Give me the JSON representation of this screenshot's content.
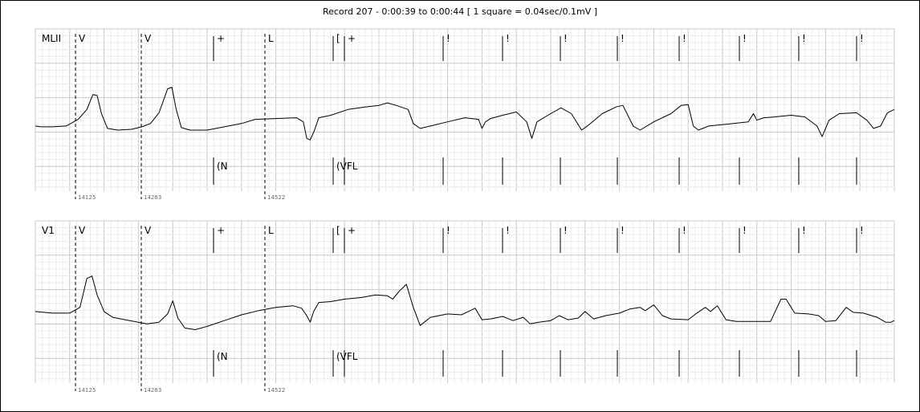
{
  "title": "Record 207 - 0:00:39 to 0:00:44  [ 1 square = 0.04sec/0.1mV ]",
  "chart_data": {
    "type": "line",
    "title": "Record 207 - 0:00:39 to 0:00:44  [ 1 square = 0.04sec/0.1mV ]",
    "record": "207",
    "time_window": [
      "0:00:39",
      "0:00:44"
    ],
    "scale": "1 square = 0.04sec/0.1mV",
    "grid": true,
    "leads": [
      {
        "name": "MLII",
        "points": [
          [
            0,
            0.05
          ],
          [
            0.03,
            0.04
          ],
          [
            0.1,
            0.04
          ],
          [
            0.18,
            0.05
          ],
          [
            0.25,
            0.13
          ],
          [
            0.3,
            0.25
          ],
          [
            0.335,
            0.43
          ],
          [
            0.36,
            0.42
          ],
          [
            0.385,
            0.2
          ],
          [
            0.42,
            0.02
          ],
          [
            0.48,
            0.0
          ],
          [
            0.56,
            0.01
          ],
          [
            0.62,
            0.04
          ],
          [
            0.67,
            0.08
          ],
          [
            0.72,
            0.21
          ],
          [
            0.77,
            0.5
          ],
          [
            0.795,
            0.52
          ],
          [
            0.82,
            0.25
          ],
          [
            0.85,
            0.03
          ],
          [
            0.9,
            0.0
          ],
          [
            1.0,
            0.0
          ],
          [
            1.1,
            0.04
          ],
          [
            1.2,
            0.08
          ],
          [
            1.28,
            0.13
          ],
          [
            1.4,
            0.14
          ],
          [
            1.52,
            0.15
          ],
          [
            1.56,
            0.1
          ],
          [
            1.58,
            -0.1
          ],
          [
            1.6,
            -0.12
          ],
          [
            1.625,
            0.0
          ],
          [
            1.65,
            0.15
          ],
          [
            1.72,
            0.18
          ],
          [
            1.82,
            0.25
          ],
          [
            1.92,
            0.28
          ],
          [
            2.0,
            0.3
          ],
          [
            2.05,
            0.33
          ],
          [
            2.1,
            0.3
          ],
          [
            2.17,
            0.25
          ],
          [
            2.2,
            0.08
          ],
          [
            2.24,
            0.02
          ],
          [
            2.3,
            0.05
          ],
          [
            2.4,
            0.1
          ],
          [
            2.5,
            0.15
          ],
          [
            2.58,
            0.13
          ],
          [
            2.6,
            0.02
          ],
          [
            2.62,
            0.1
          ],
          [
            2.65,
            0.14
          ],
          [
            2.72,
            0.18
          ],
          [
            2.8,
            0.22
          ],
          [
            2.86,
            0.1
          ],
          [
            2.89,
            -0.1
          ],
          [
            2.92,
            0.1
          ],
          [
            3.0,
            0.2
          ],
          [
            3.06,
            0.27
          ],
          [
            3.12,
            0.2
          ],
          [
            3.18,
            0.0
          ],
          [
            3.22,
            0.06
          ],
          [
            3.3,
            0.2
          ],
          [
            3.38,
            0.28
          ],
          [
            3.42,
            0.3
          ],
          [
            3.48,
            0.05
          ],
          [
            3.52,
            0.0
          ],
          [
            3.6,
            0.1
          ],
          [
            3.7,
            0.2
          ],
          [
            3.76,
            0.3
          ],
          [
            3.8,
            0.31
          ],
          [
            3.83,
            0.05
          ],
          [
            3.86,
            0.0
          ],
          [
            3.92,
            0.05
          ],
          [
            4.02,
            0.07
          ],
          [
            4.15,
            0.1
          ],
          [
            4.18,
            0.2
          ],
          [
            4.2,
            0.12
          ],
          [
            4.24,
            0.15
          ],
          [
            4.3,
            0.16
          ],
          [
            4.4,
            0.18
          ],
          [
            4.48,
            0.16
          ],
          [
            4.55,
            0.05
          ],
          [
            4.58,
            -0.08
          ],
          [
            4.62,
            0.12
          ],
          [
            4.68,
            0.2
          ],
          [
            4.78,
            0.21
          ],
          [
            4.84,
            0.12
          ],
          [
            4.88,
            0.02
          ],
          [
            4.92,
            0.05
          ],
          [
            4.96,
            0.21
          ],
          [
            5.0,
            0.25
          ]
        ]
      },
      {
        "name": "V1",
        "points": [
          [
            0,
            0.05
          ],
          [
            0.1,
            0.03
          ],
          [
            0.2,
            0.03
          ],
          [
            0.26,
            0.1
          ],
          [
            0.3,
            0.45
          ],
          [
            0.33,
            0.48
          ],
          [
            0.36,
            0.25
          ],
          [
            0.4,
            0.05
          ],
          [
            0.45,
            -0.02
          ],
          [
            0.55,
            -0.06
          ],
          [
            0.65,
            -0.1
          ],
          [
            0.72,
            -0.08
          ],
          [
            0.77,
            0.02
          ],
          [
            0.8,
            0.18
          ],
          [
            0.83,
            -0.03
          ],
          [
            0.87,
            -0.15
          ],
          [
            0.93,
            -0.17
          ],
          [
            1.0,
            -0.13
          ],
          [
            1.1,
            -0.06
          ],
          [
            1.2,
            0.01
          ],
          [
            1.3,
            0.06
          ],
          [
            1.4,
            0.1
          ],
          [
            1.5,
            0.12
          ],
          [
            1.55,
            0.09
          ],
          [
            1.58,
            0.0
          ],
          [
            1.6,
            -0.08
          ],
          [
            1.62,
            0.05
          ],
          [
            1.65,
            0.16
          ],
          [
            1.72,
            0.17
          ],
          [
            1.8,
            0.2
          ],
          [
            1.9,
            0.22
          ],
          [
            1.98,
            0.25
          ],
          [
            2.05,
            0.24
          ],
          [
            2.08,
            0.2
          ],
          [
            2.12,
            0.3
          ],
          [
            2.16,
            0.38
          ],
          [
            2.2,
            0.1
          ],
          [
            2.24,
            -0.12
          ],
          [
            2.3,
            -0.02
          ],
          [
            2.4,
            0.02
          ],
          [
            2.48,
            0.01
          ],
          [
            2.52,
            0.05
          ],
          [
            2.56,
            0.09
          ],
          [
            2.6,
            -0.05
          ],
          [
            2.65,
            -0.04
          ],
          [
            2.72,
            -0.01
          ],
          [
            2.78,
            -0.06
          ],
          [
            2.84,
            -0.02
          ],
          [
            2.88,
            -0.1
          ],
          [
            2.93,
            -0.08
          ],
          [
            3.0,
            -0.06
          ],
          [
            3.05,
            0.0
          ],
          [
            3.1,
            -0.05
          ],
          [
            3.16,
            -0.03
          ],
          [
            3.2,
            0.05
          ],
          [
            3.25,
            -0.04
          ],
          [
            3.32,
            0.0
          ],
          [
            3.4,
            0.03
          ],
          [
            3.46,
            0.08
          ],
          [
            3.52,
            0.1
          ],
          [
            3.55,
            0.06
          ],
          [
            3.6,
            0.13
          ],
          [
            3.65,
            0.0
          ],
          [
            3.7,
            -0.04
          ],
          [
            3.8,
            -0.05
          ],
          [
            3.85,
            0.03
          ],
          [
            3.9,
            0.1
          ],
          [
            3.93,
            0.05
          ],
          [
            3.97,
            0.12
          ],
          [
            4.02,
            -0.05
          ],
          [
            4.08,
            -0.07
          ],
          [
            4.2,
            -0.07
          ],
          [
            4.28,
            -0.07
          ],
          [
            4.34,
            0.2
          ],
          [
            4.37,
            0.2
          ],
          [
            4.42,
            0.03
          ],
          [
            4.5,
            0.02
          ],
          [
            4.56,
            0.0
          ],
          [
            4.6,
            -0.07
          ],
          [
            4.66,
            -0.06
          ],
          [
            4.72,
            0.1
          ],
          [
            4.76,
            0.04
          ],
          [
            4.82,
            0.03
          ],
          [
            4.9,
            -0.02
          ],
          [
            4.95,
            -0.08
          ],
          [
            4.98,
            -0.08
          ],
          [
            5.0,
            -0.06
          ]
        ]
      }
    ],
    "beat_annotations": [
      {
        "label": "V",
        "sample": "14125"
      },
      {
        "label": "V",
        "sample": "14263"
      },
      {
        "label": "+",
        "rhythm": "(N"
      },
      {
        "label": "L",
        "sample": "14522"
      },
      {
        "label": "[",
        "rhythm": "(VFL"
      },
      {
        "label": "+"
      },
      {
        "label": "!"
      },
      {
        "label": "!"
      },
      {
        "label": "!"
      },
      {
        "label": "!"
      },
      {
        "label": "!"
      },
      {
        "label": "!"
      },
      {
        "label": "!"
      },
      {
        "label": "!"
      }
    ]
  }
}
